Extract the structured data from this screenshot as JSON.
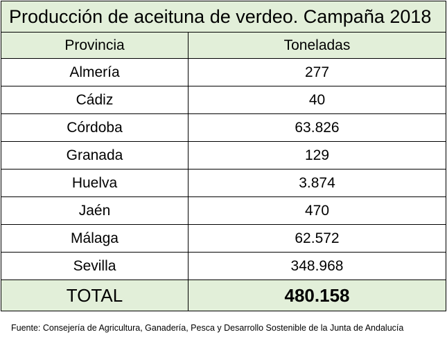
{
  "title": "Producción de aceituna de verdeo. Campaña 2018",
  "headers": {
    "province": "Provincia",
    "tonnes": "Toneladas"
  },
  "rows": [
    {
      "province": "Almería",
      "tonnes": "277"
    },
    {
      "province": "Cádiz",
      "tonnes": "40"
    },
    {
      "province": "Córdoba",
      "tonnes": "63.826"
    },
    {
      "province": "Granada",
      "tonnes": "129"
    },
    {
      "province": "Huelva",
      "tonnes": "3.874"
    },
    {
      "province": "Jaén",
      "tonnes": "470"
    },
    {
      "province": "Málaga",
      "tonnes": "62.572"
    },
    {
      "province": "Sevilla",
      "tonnes": "348.968"
    }
  ],
  "total": {
    "label": "TOTAL",
    "value": "480.158"
  },
  "source": "Fuente: Consejería de Agricultura, Ganadería, Pesca y Desarrollo Sostenible de la Junta de Andalucía",
  "colors": {
    "header_fill": "#e2efd9",
    "border": "#000000"
  }
}
